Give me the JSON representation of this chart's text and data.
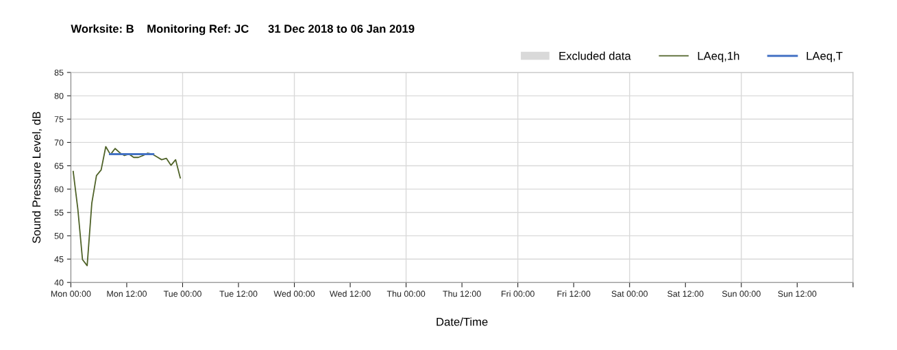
{
  "chart_data": {
    "type": "line",
    "title": "Worksite: B    Monitoring Ref: JC      31 Dec 2018 to 06 Jan 2019",
    "xlabel": "Date/Time",
    "ylabel": "Sound Pressure Level, dB",
    "series": [
      {
        "name": "Excluded data",
        "type": "area",
        "color": "#d9d9d9"
      },
      {
        "name": "LAeq,1h",
        "color": "#4f6228",
        "x": [
          "2018-12-31T00:30",
          "2018-12-31T01:30",
          "2018-12-31T02:30",
          "2018-12-31T03:30",
          "2018-12-31T04:30",
          "2018-12-31T05:30",
          "2018-12-31T06:30",
          "2018-12-31T07:30",
          "2018-12-31T08:30",
          "2018-12-31T09:30",
          "2018-12-31T10:30",
          "2018-12-31T11:30",
          "2018-12-31T12:30",
          "2018-12-31T13:30",
          "2018-12-31T14:30",
          "2018-12-31T15:30",
          "2018-12-31T16:30",
          "2018-12-31T17:30",
          "2018-12-31T18:30",
          "2018-12-31T19:30",
          "2018-12-31T20:30",
          "2018-12-31T21:30",
          "2018-12-31T22:30",
          "2018-12-31T23:30"
        ],
        "values": [
          63.8,
          55.7,
          44.9,
          43.6,
          57.0,
          62.9,
          64.1,
          69.1,
          67.4,
          68.7,
          67.8,
          67.2,
          67.5,
          66.8,
          66.8,
          67.2,
          67.7,
          67.5,
          66.9,
          66.3,
          66.6,
          65.1,
          66.3,
          62.4
        ]
      },
      {
        "name": "LAeq,T",
        "color": "#4472c4",
        "x": [
          "2018-12-31T08:24",
          "2018-12-31T17:42"
        ],
        "values": [
          67.5,
          67.5
        ]
      }
    ],
    "xlim": [
      "2018-12-31T00:00",
      "2019-01-07T00:00"
    ],
    "xticks": [
      {
        "value": "2018-12-31T00:00",
        "label": "Mon 00:00"
      },
      {
        "value": "2018-12-31T12:00",
        "label": "Mon 12:00"
      },
      {
        "value": "2019-01-01T00:00",
        "label": "Tue 00:00"
      },
      {
        "value": "2019-01-01T12:00",
        "label": "Tue 12:00"
      },
      {
        "value": "2019-01-02T00:00",
        "label": "Wed 00:00"
      },
      {
        "value": "2019-01-02T12:00",
        "label": "Wed 12:00"
      },
      {
        "value": "2019-01-03T00:00",
        "label": "Thu 00:00"
      },
      {
        "value": "2019-01-03T12:00",
        "label": "Thu 12:00"
      },
      {
        "value": "2019-01-04T00:00",
        "label": "Fri 00:00"
      },
      {
        "value": "2019-01-04T12:00",
        "label": "Fri 12:00"
      },
      {
        "value": "2019-01-05T00:00",
        "label": "Sat 00:00"
      },
      {
        "value": "2019-01-05T12:00",
        "label": "Sat 12:00"
      },
      {
        "value": "2019-01-06T00:00",
        "label": "Sun 00:00"
      },
      {
        "value": "2019-01-06T12:00",
        "label": "Sun 12:00"
      },
      {
        "value": "2019-01-07T00:00",
        "label": null
      }
    ],
    "ylim": [
      40,
      85
    ],
    "yticks": [
      40,
      45,
      50,
      55,
      60,
      65,
      70,
      75,
      80,
      85
    ],
    "grid": true,
    "legend": "top right",
    "marker": "none",
    "line_style": "solid"
  }
}
